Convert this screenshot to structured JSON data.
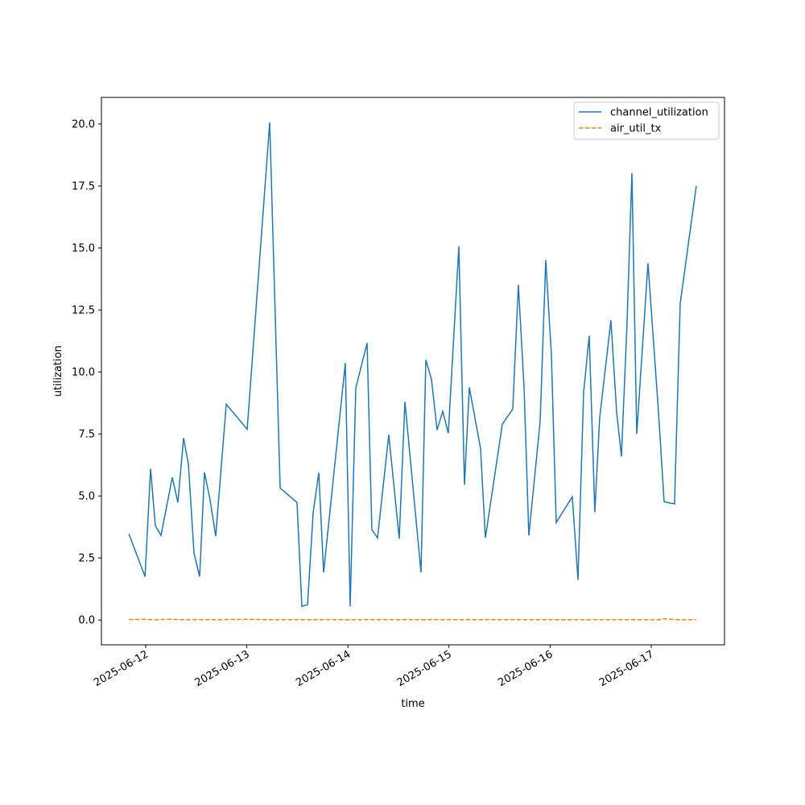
{
  "chart_data": {
    "type": "line",
    "xlabel": "time",
    "ylabel": "utilization",
    "x": [
      "2025-06-11T20:00",
      "2025-06-11T23:50",
      "2025-06-12T01:09",
      "2025-06-12T02:17",
      "2025-06-12T03:38",
      "2025-06-12T06:18",
      "2025-06-12T07:38",
      "2025-06-12T08:59",
      "2025-06-12T10:08",
      "2025-06-12T11:28",
      "2025-06-12T12:48",
      "2025-06-12T13:57",
      "2025-06-12T15:17",
      "2025-06-12T16:37",
      "2025-06-12T19:07",
      "2025-06-13T00:05",
      "2025-06-13T05:26",
      "2025-06-13T07:55",
      "2025-06-13T11:55",
      "2025-06-13T13:04",
      "2025-06-13T14:25",
      "2025-06-13T15:45",
      "2025-06-13T17:05",
      "2025-06-13T18:14",
      "2025-06-13T23:23",
      "2025-06-14T00:32",
      "2025-06-14T01:52",
      "2025-06-14T04:33",
      "2025-06-14T05:41",
      "2025-06-14T07:02",
      "2025-06-14T09:42",
      "2025-06-14T12:11",
      "2025-06-14T13:32",
      "2025-06-14T17:21",
      "2025-06-14T18:30",
      "2025-06-14T19:50",
      "2025-06-14T21:10",
      "2025-06-14T22:31",
      "2025-06-14T23:50",
      "2025-06-15T02:20",
      "2025-06-15T03:40",
      "2025-06-15T04:49",
      "2025-06-15T07:29",
      "2025-06-15T08:38",
      "2025-06-15T12:39",
      "2025-06-15T15:08",
      "2025-06-15T16:28",
      "2025-06-15T17:49",
      "2025-06-15T18:57",
      "2025-06-15T21:38",
      "2025-06-15T22:58",
      "2025-06-16T00:18",
      "2025-06-16T01:27",
      "2025-06-16T05:16",
      "2025-06-16T06:37",
      "2025-06-16T07:57",
      "2025-06-16T09:17",
      "2025-06-16T10:37",
      "2025-06-16T11:46",
      "2025-06-16T14:26",
      "2025-06-16T15:47",
      "2025-06-16T16:56",
      "2025-06-16T18:16",
      "2025-06-16T19:25",
      "2025-06-16T20:34",
      "2025-06-16T23:14",
      "2025-06-17T01:43",
      "2025-06-17T03:04",
      "2025-06-17T05:32",
      "2025-06-17T06:53",
      "2025-06-17T10:42"
    ],
    "series": [
      {
        "name": "channel_utilization",
        "color": "#1f77b4",
        "dash": "solid",
        "values": [
          3.47,
          1.75,
          6.1,
          3.8,
          3.41,
          5.75,
          4.74,
          7.34,
          6.27,
          2.69,
          1.75,
          5.95,
          4.84,
          3.38,
          8.7,
          7.69,
          20.06,
          5.32,
          4.74,
          0.55,
          0.62,
          4.32,
          5.94,
          1.92,
          10.36,
          0.55,
          9.35,
          11.17,
          3.64,
          3.31,
          7.47,
          3.28,
          8.8,
          1.92,
          10.49,
          9.71,
          7.66,
          8.41,
          7.53,
          15.06,
          5.45,
          9.38,
          6.92,
          3.31,
          7.89,
          8.51,
          13.51,
          9.38,
          3.41,
          8.0,
          14.51,
          10.71,
          3.93,
          4.97,
          1.62,
          9.16,
          11.46,
          4.35,
          8.15,
          12.08,
          8.41,
          6.59,
          12.0,
          18.02,
          7.5,
          14.38,
          8.41,
          4.77,
          4.68,
          12.76,
          17.5
        ]
      },
      {
        "name": "air_util_tx",
        "color": "#ff7f0e",
        "dash": "dashed",
        "values": [
          0.02,
          0.03,
          0.01,
          0.01,
          0.02,
          0.03,
          0.02,
          0.01,
          0.01,
          0.02,
          0.02,
          0.01,
          0.02,
          0.01,
          0.02,
          0.03,
          0.01,
          0.01,
          0.02,
          0.01,
          0.02,
          0.01,
          0.02,
          0.02,
          0.01,
          0.01,
          0.01,
          0.02,
          0.01,
          0.02,
          0.02,
          0.01,
          0.02,
          0.01,
          0.01,
          0.02,
          0.02,
          0.01,
          0.02,
          0.01,
          0.01,
          0.02,
          0.01,
          0.02,
          0.01,
          0.02,
          0.02,
          0.01,
          0.01,
          0.02,
          0.01,
          0.02,
          0.01,
          0.01,
          0.02,
          0.01,
          0.01,
          0.02,
          0.01,
          0.01,
          0.02,
          0.01,
          0.01,
          0.02,
          0.01,
          0.01,
          0.01,
          0.05,
          0.02,
          0.01,
          0.01
        ]
      }
    ],
    "xlim": [
      "2025-06-11T13:29",
      "2025-06-17T17:24"
    ],
    "xticks": [
      "2025-06-12",
      "2025-06-13",
      "2025-06-14",
      "2025-06-15",
      "2025-06-16",
      "2025-06-17"
    ],
    "ylim": [
      -1.0,
      21.07
    ],
    "yticks": [
      {
        "value": 0,
        "label": "0.0"
      },
      {
        "value": 2.5,
        "label": "2.5"
      },
      {
        "value": 5,
        "label": "5.0"
      },
      {
        "value": 7.5,
        "label": "7.5"
      },
      {
        "value": 10,
        "label": "10.0"
      },
      {
        "value": 12.5,
        "label": "12.5"
      },
      {
        "value": 15,
        "label": "15.0"
      },
      {
        "value": 17.5,
        "label": "17.5"
      },
      {
        "value": 20,
        "label": "20.0"
      }
    ],
    "grid": false,
    "legend": "upper right"
  }
}
